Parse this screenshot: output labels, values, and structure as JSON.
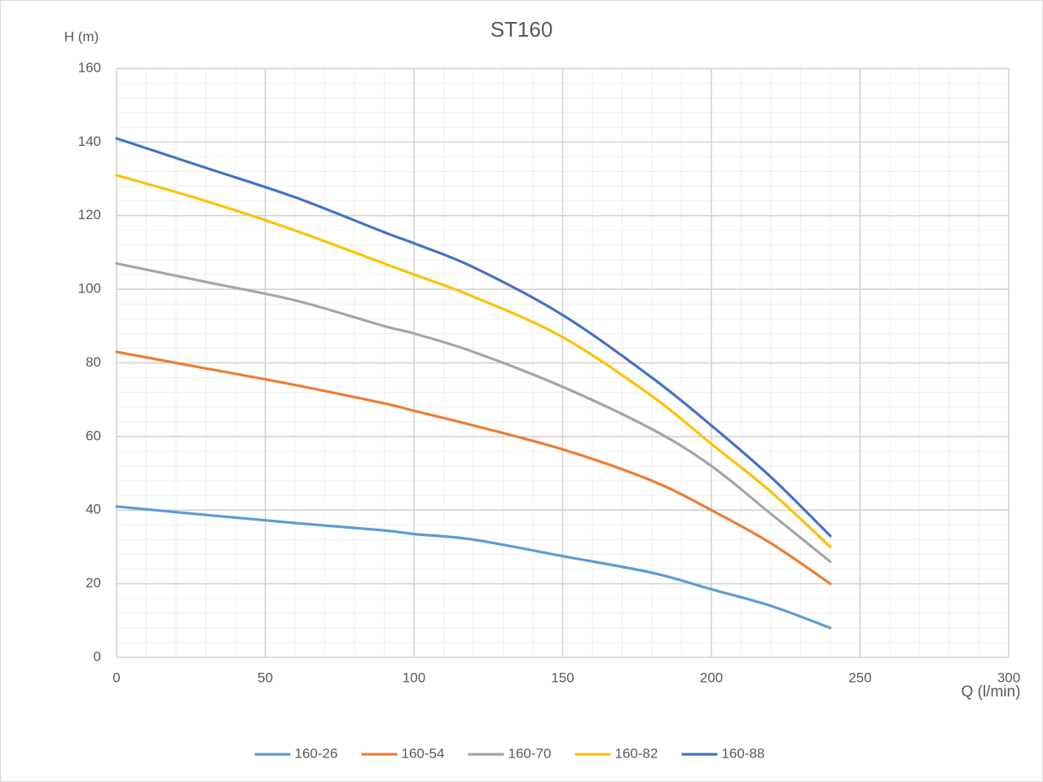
{
  "chart_data": {
    "type": "line",
    "title": "ST160",
    "y_label": "H (m)",
    "x_label": "Q (l/min)",
    "x": [
      0,
      30,
      60,
      90,
      100,
      120,
      150,
      180,
      200,
      220,
      240
    ],
    "series": [
      {
        "name": "160-26",
        "color": "#5b9bd5",
        "values": [
          41,
          38.7,
          36.5,
          34.5,
          33.5,
          32,
          27.5,
          23,
          18.5,
          14,
          8
        ]
      },
      {
        "name": "160-54",
        "color": "#ed7d31",
        "values": [
          83,
          78.5,
          74,
          69,
          67,
          63,
          56.5,
          48,
          40,
          31,
          20
        ]
      },
      {
        "name": "160-70",
        "color": "#a5a5a5",
        "values": [
          107,
          102,
          97,
          90,
          88,
          83,
          73.5,
          62,
          52,
          39,
          26
        ]
      },
      {
        "name": "160-82",
        "color": "#ffc000",
        "values": [
          131,
          124,
          116,
          107,
          104,
          98,
          87,
          71,
          58,
          45,
          30
        ]
      },
      {
        "name": "160-88",
        "color": "#4472c4",
        "values": [
          141,
          133,
          125,
          115.5,
          112.5,
          106,
          93,
          76,
          63,
          49,
          33
        ]
      }
    ],
    "xlim": [
      0,
      300
    ],
    "xticks": [
      0,
      50,
      100,
      150,
      200,
      250,
      300
    ],
    "ylim": [
      0,
      160
    ],
    "yticks": [
      0,
      20,
      40,
      60,
      80,
      100,
      120,
      140,
      160
    ],
    "grid": true,
    "minor_divisions": 5,
    "legend": "bottom"
  }
}
